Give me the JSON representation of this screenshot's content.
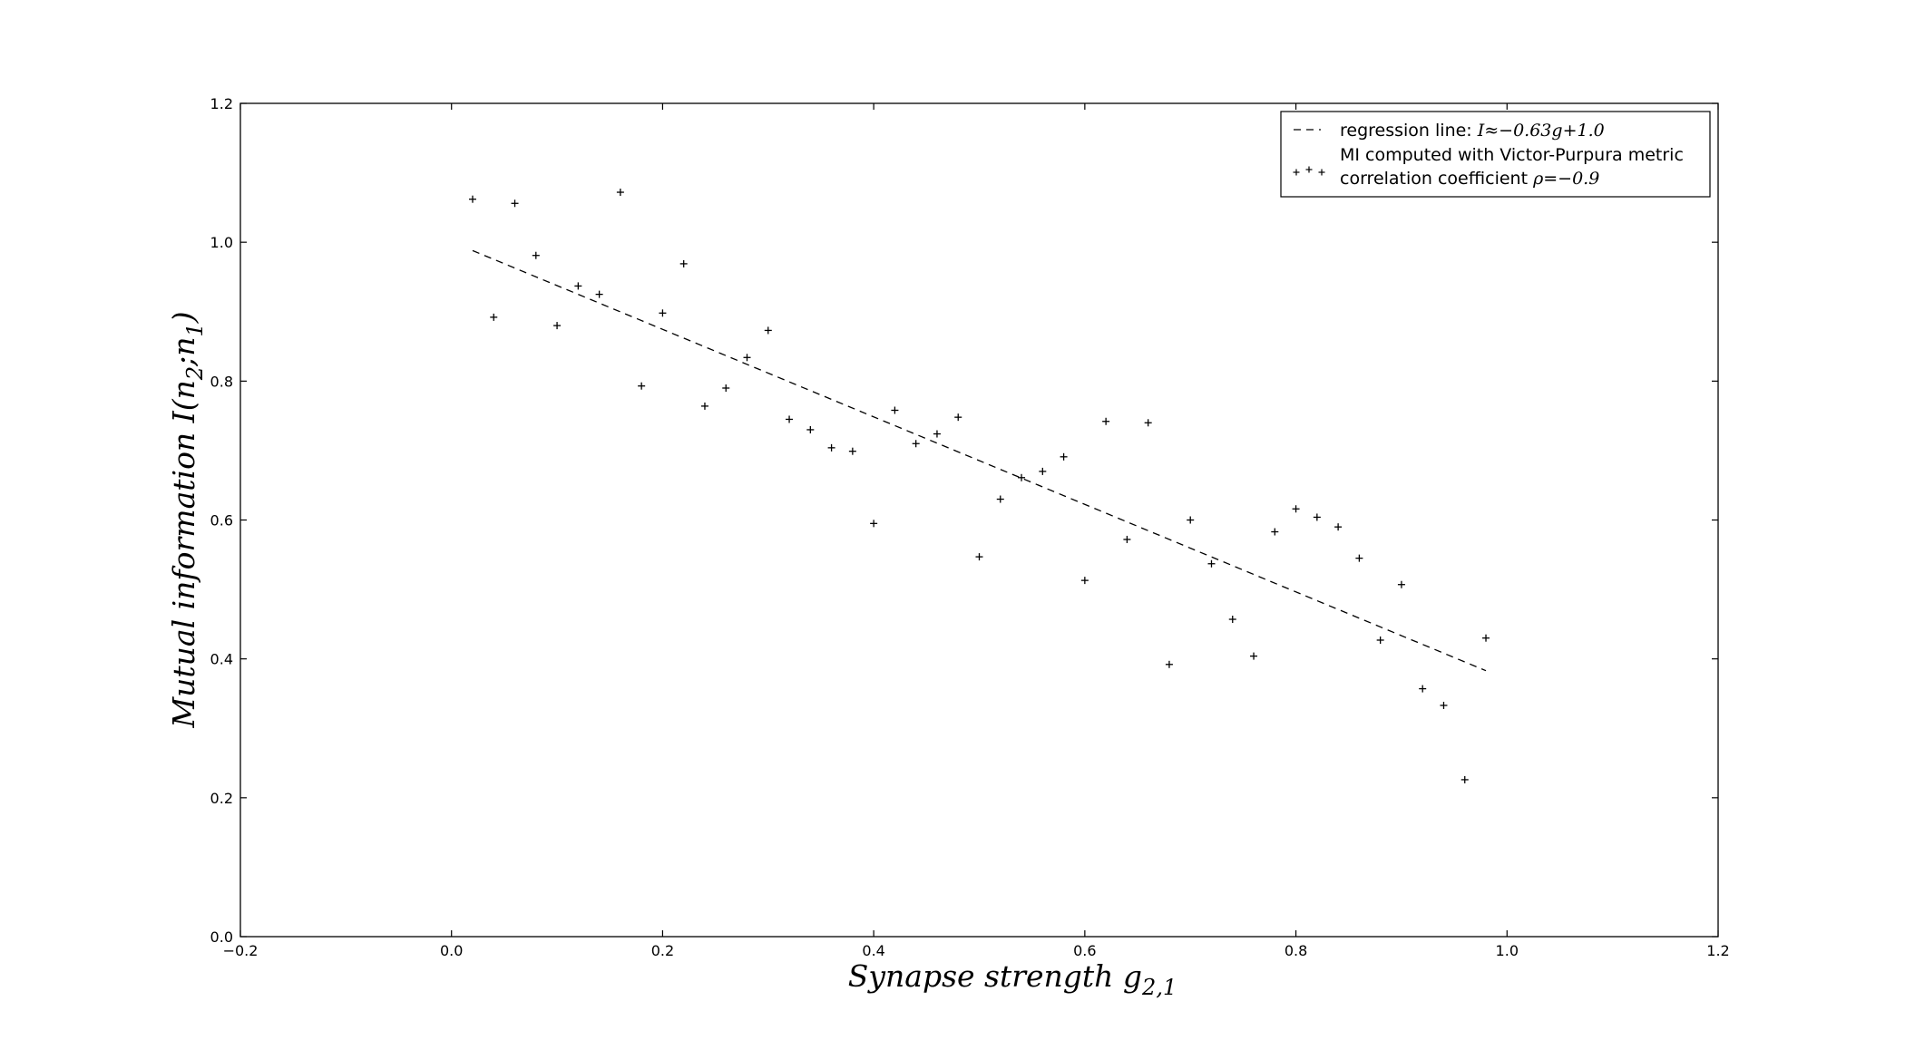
{
  "chart_data": {
    "type": "scatter",
    "x_axis": {
      "label": "Synapse strength g",
      "label_subscript": "2,1",
      "lim": [
        -0.2,
        1.2
      ],
      "ticks": [
        -0.2,
        0.0,
        0.2,
        0.4,
        0.6,
        0.8,
        1.0,
        1.2
      ],
      "tick_labels": [
        "−0.2",
        "0.0",
        "0.2",
        "0.4",
        "0.6",
        "0.8",
        "1.0",
        "1.2"
      ]
    },
    "y_axis": {
      "label_prefix": "Mutual information I(n",
      "label_sub1": "2",
      "label_mid": ";n",
      "label_sub2": "1",
      "label_suffix": ")",
      "lim": [
        0.0,
        1.2
      ],
      "ticks": [
        0.0,
        0.2,
        0.4,
        0.6,
        0.8,
        1.0,
        1.2
      ],
      "tick_labels": [
        "0.0",
        "0.2",
        "0.4",
        "0.6",
        "0.8",
        "1.0",
        "1.2"
      ]
    },
    "grid": false,
    "legend": {
      "placement": "top-right",
      "entries": [
        {
          "text": "regression line: ",
          "math": "I≈−0.63g+1.0",
          "style": "dashed-line"
        },
        {
          "text": "MI computed with Victor-Purpura metric",
          "style": "plus-markers"
        },
        {
          "text": "correlation coefficient ",
          "math": "ρ=−0.9",
          "style": "none"
        }
      ]
    },
    "series": [
      {
        "name": "MI computed with Victor-Purpura metric",
        "type": "scatter",
        "marker": "+",
        "x": [
          0.02,
          0.04,
          0.06,
          0.08,
          0.1,
          0.12,
          0.14,
          0.16,
          0.18,
          0.2,
          0.22,
          0.24,
          0.26,
          0.28,
          0.3,
          0.32,
          0.34,
          0.36,
          0.38,
          0.4,
          0.42,
          0.44,
          0.46,
          0.48,
          0.5,
          0.52,
          0.54,
          0.56,
          0.58,
          0.6,
          0.62,
          0.64,
          0.66,
          0.68,
          0.7,
          0.72,
          0.74,
          0.76,
          0.78,
          0.8,
          0.82,
          0.84,
          0.86,
          0.88,
          0.9,
          0.92,
          0.94,
          0.96,
          0.98
        ],
        "y": [
          1.062,
          0.892,
          1.056,
          0.981,
          0.88,
          0.937,
          0.925,
          1.072,
          0.793,
          0.898,
          0.969,
          0.764,
          0.79,
          0.834,
          0.873,
          0.745,
          0.73,
          0.704,
          0.699,
          0.595,
          0.758,
          0.71,
          0.724,
          0.748,
          0.547,
          0.63,
          0.661,
          0.67,
          0.691,
          0.513,
          0.742,
          0.572,
          0.74,
          0.392,
          0.6,
          0.537,
          0.457,
          0.404,
          0.583,
          0.616,
          0.604,
          0.59,
          0.545,
          0.427,
          0.507,
          0.357,
          0.333,
          0.226,
          0.43
        ]
      },
      {
        "name": "regression line",
        "type": "line",
        "style": "dashed",
        "x": [
          0.02,
          0.98
        ],
        "y": [
          0.988,
          0.383
        ]
      }
    ]
  }
}
